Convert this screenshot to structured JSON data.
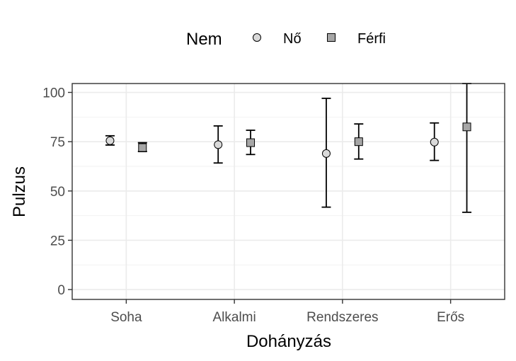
{
  "chart_data": {
    "type": "errorbar",
    "xlabel": "Dohányzás",
    "ylabel": "Pulzus",
    "categories": [
      "Soha",
      "Alkalmi",
      "Rendszeres",
      "Erős"
    ],
    "yticks": [
      0,
      25,
      50,
      75,
      100
    ],
    "ylim": [
      -5,
      104.5
    ],
    "grid": true,
    "legend": {
      "title": "Nem",
      "position": "top"
    },
    "series": [
      {
        "name": "Nő",
        "marker": "circle",
        "color": "#d9d9d9",
        "mean": [
          75.5,
          73.5,
          69,
          74.8
        ],
        "lower": [
          73.3,
          64.2,
          41.8,
          65.5
        ],
        "upper": [
          78,
          83,
          97,
          84.5
        ]
      },
      {
        "name": "Férfi",
        "marker": "square",
        "color": "#a6a6a6",
        "mean": [
          72,
          74.5,
          75,
          82.5
        ],
        "lower": [
          70,
          68.5,
          66.2,
          39.2
        ],
        "upper": [
          74.5,
          80.8,
          84,
          104.5
        ]
      }
    ]
  }
}
